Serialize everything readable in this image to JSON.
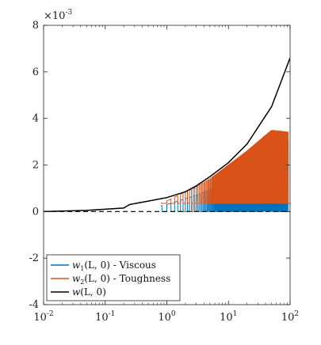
{
  "chart_data": {
    "type": "line",
    "xscale": "log",
    "xlim": [
      0.01,
      100
    ],
    "ylim": [
      -4,
      8
    ],
    "y_multiplier_label": "×10",
    "y_multiplier_exponent": "-3",
    "x_ticks": [
      {
        "value": 0.01,
        "base": "10",
        "exp": "-2"
      },
      {
        "value": 0.1,
        "base": "10",
        "exp": "-1"
      },
      {
        "value": 1,
        "base": "10",
        "exp": "0"
      },
      {
        "value": 10,
        "base": "10",
        "exp": "1"
      },
      {
        "value": 100,
        "base": "10",
        "exp": "2"
      }
    ],
    "y_ticks": [
      {
        "value": -4,
        "label": "-4"
      },
      {
        "value": -2,
        "label": "-2"
      },
      {
        "value": 0,
        "label": "0"
      },
      {
        "value": 2,
        "label": "2"
      },
      {
        "value": 4,
        "label": "4"
      },
      {
        "value": 6,
        "label": "6"
      },
      {
        "value": 8,
        "label": "8"
      }
    ],
    "grid": false,
    "legend_position": "bottom-left",
    "series": [
      {
        "name": "w1(L, 0) - Viscous",
        "legend": {
          "main": "w",
          "sub": "1",
          "args": "(L, 0) - Viscous"
        },
        "color": "#0072BD",
        "envelope_upper": [
          [
            0.8,
            0.25
          ],
          [
            1,
            0.3
          ],
          [
            2,
            0.55
          ],
          [
            3,
            0.7
          ],
          [
            5,
            0.95
          ],
          [
            10,
            1.35
          ],
          [
            20,
            1.8
          ],
          [
            50,
            2.5
          ],
          [
            100,
            3.1
          ]
        ],
        "envelope_lower": [
          [
            0.8,
            0
          ],
          [
            100,
            0
          ]
        ]
      },
      {
        "name": "w2(L, 0) - Toughness",
        "legend": {
          "main": "w",
          "sub": "2",
          "args": "(L, 0) - Toughness"
        },
        "color": "#D95319",
        "envelope_upper": [
          [
            0.8,
            0.35
          ],
          [
            1,
            0.45
          ],
          [
            2,
            0.85
          ],
          [
            3,
            1.05
          ],
          [
            5,
            1.4
          ],
          [
            10,
            2.0
          ],
          [
            20,
            2.6
          ],
          [
            50,
            3.5
          ],
          [
            100,
            3.4
          ]
        ],
        "envelope_lower": [
          [
            0.8,
            0.35
          ],
          [
            100,
            0.35
          ]
        ]
      },
      {
        "name": "w(L, 0)",
        "legend": {
          "main": "w",
          "sub": "",
          "args": "(L, 0)"
        },
        "color": "#000000",
        "points": [
          [
            0.01,
            0.0
          ],
          [
            0.05,
            0.05
          ],
          [
            0.2,
            0.15
          ],
          [
            0.25,
            0.3
          ],
          [
            0.5,
            0.45
          ],
          [
            0.8,
            0.55
          ],
          [
            1,
            0.6
          ],
          [
            2,
            0.85
          ],
          [
            3,
            1.1
          ],
          [
            5,
            1.5
          ],
          [
            10,
            2.1
          ],
          [
            20,
            2.9
          ],
          [
            50,
            4.5
          ],
          [
            100,
            6.6
          ]
        ]
      }
    ]
  }
}
